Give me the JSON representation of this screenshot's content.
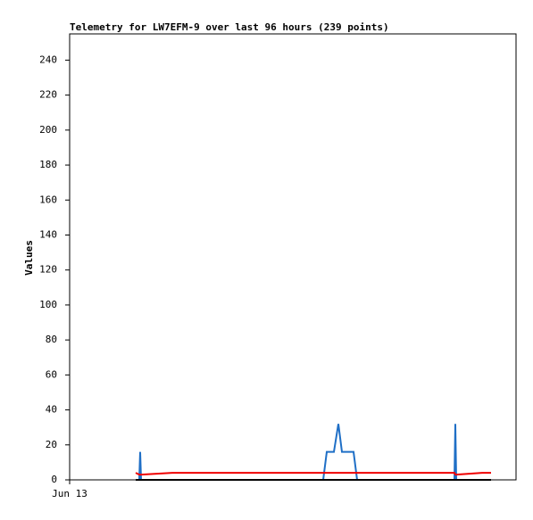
{
  "chart_data": {
    "type": "line",
    "title": "Telemetry for LW7EFM-9 over last 96 hours (239 points)",
    "y_label": "Values",
    "x": [
      14.8,
      15.6,
      15.8,
      16.0,
      23,
      56.8,
      57.6,
      59.2,
      60.2,
      61,
      63.6,
      64.4,
      86.2,
      86.4,
      86.6,
      92.4,
      94.4
    ],
    "series": [
      {
        "color": "#1f6fc6",
        "values": [
          0,
          0,
          16,
          0,
          0,
          0,
          16,
          16,
          32,
          16,
          16,
          0,
          0,
          32,
          0,
          0,
          0
        ]
      },
      {
        "color": "#ee0000",
        "values": [
          4,
          3,
          3,
          3,
          4,
          4,
          4,
          4,
          4,
          4,
          4,
          4,
          4,
          3,
          3,
          4,
          4
        ]
      },
      {
        "color": "#000000",
        "values": [
          0,
          0,
          0,
          0,
          0,
          0,
          0,
          0,
          0,
          0,
          0,
          0,
          0,
          0,
          0,
          0,
          0
        ]
      }
    ],
    "xlim": [
      0,
      100
    ],
    "xticks": [
      {
        "value": 0,
        "label": "Jun 13"
      }
    ],
    "ylim": [
      0,
      255
    ],
    "yticks": [
      0,
      20,
      40,
      60,
      80,
      100,
      120,
      140,
      160,
      180,
      200,
      220,
      240
    ],
    "grid": false
  }
}
